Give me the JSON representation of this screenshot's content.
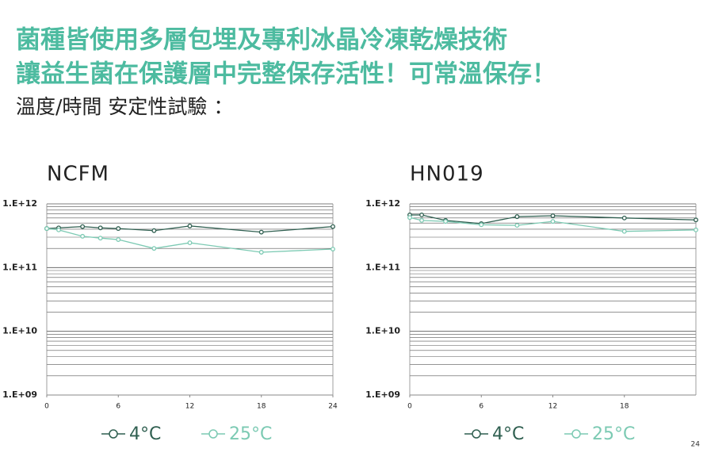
{
  "header": {
    "title_lines": [
      "菌種皆使用多層包埋及專利冰晶冷凍乾燥技術",
      "讓益生菌在保護層中完整保存活性！可常溫保存！"
    ],
    "subtitle": "溫度/時間 安定性試驗 ："
  },
  "page_number": "24",
  "chart_data": [
    {
      "type": "line",
      "title": "NCFM",
      "log_y": true,
      "grid": true,
      "minor_grid": true,
      "legend": "bottom",
      "x": [
        0,
        1,
        3,
        4.5,
        6,
        9,
        12,
        18,
        24
      ],
      "series": [
        {
          "name": "4°C",
          "color": "#2f5f50",
          "values": [
            410000000000,
            420000000000,
            440000000000,
            420000000000,
            410000000000,
            380000000000,
            450000000000,
            360000000000,
            440000000000
          ]
        },
        {
          "name": "25°C",
          "color": "#7ccab3",
          "values": [
            410000000000,
            390000000000,
            310000000000,
            290000000000,
            275000000000,
            200000000000,
            245000000000,
            174000000000,
            195000000000
          ]
        }
      ],
      "xlim": [
        0,
        24
      ],
      "xticks": [
        0,
        6,
        12,
        18,
        24
      ],
      "ylim": [
        1000000000,
        1000000000000
      ],
      "yticks": [
        {
          "value": 1000000000,
          "label": "1.E+09"
        },
        {
          "value": 10000000000,
          "label": "1.E+10"
        },
        {
          "value": 100000000000,
          "label": "1.E+11"
        },
        {
          "value": 1000000000000,
          "label": "1.E+12"
        }
      ]
    },
    {
      "type": "line",
      "title": "HN019",
      "log_y": true,
      "grid": true,
      "minor_grid": true,
      "legend": "bottom",
      "x": [
        0,
        1,
        3,
        6,
        9,
        12,
        18,
        24
      ],
      "series": [
        {
          "name": "4°C",
          "color": "#2f5f50",
          "values": [
            670000000000,
            670000000000,
            550000000000,
            490000000000,
            630000000000,
            650000000000,
            600000000000,
            560000000000
          ]
        },
        {
          "name": "25°C",
          "color": "#7ccab3",
          "values": [
            610000000000,
            550000000000,
            530000000000,
            470000000000,
            460000000000,
            530000000000,
            370000000000,
            390000000000
          ]
        }
      ],
      "xlim": [
        0,
        24
      ],
      "xticks": [
        0,
        6,
        12,
        18
      ],
      "ylim": [
        1000000000,
        1000000000000
      ],
      "yticks": [
        {
          "value": 1000000000,
          "label": "1.E+09"
        },
        {
          "value": 10000000000,
          "label": "1.E+10"
        },
        {
          "value": 100000000000,
          "label": "1.E+11"
        },
        {
          "value": 1000000000000,
          "label": "1.E+12"
        }
      ]
    }
  ]
}
